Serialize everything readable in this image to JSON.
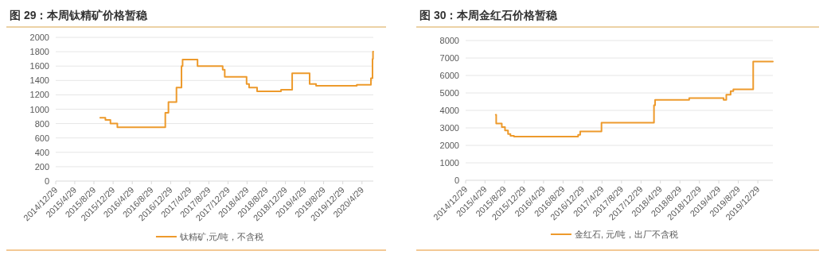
{
  "chart_data": [
    {
      "type": "step",
      "title": "图 29：本周钛精矿价格暂稳",
      "grid": "y",
      "legend": "bottom",
      "x": [
        "2015-10-08",
        "2015-11-10",
        "2015-12-12",
        "2016-01-25",
        "2016-11-25",
        "2016-12-15",
        "2017-02-04",
        "2017-03-08",
        "2017-03-15",
        "2017-06-18",
        "2017-11-25",
        "2017-12-08",
        "2018-04-26",
        "2018-05-12",
        "2018-07-02",
        "2018-12-01",
        "2019-02-10",
        "2019-06-01",
        "2019-07-12",
        "2020-03-27",
        "2020-06-25",
        "2020-07-05",
        "2020-07-08",
        "2020-07-10"
      ],
      "series": [
        {
          "name": "钛精矿,元/吨，不含税",
          "color": "#ed9a2c",
          "values": [
            880,
            850,
            800,
            750,
            950,
            1100,
            1300,
            1600,
            1690,
            1600,
            1550,
            1450,
            1350,
            1300,
            1250,
            1270,
            1500,
            1350,
            1325,
            1340,
            1430,
            1700,
            1800,
            1800
          ]
        }
      ],
      "xlim": [
        "2014-12-29",
        "2020-07-10"
      ],
      "xticks": [
        {
          "value": "2014-12-29",
          "label": "2014/12/29"
        },
        {
          "value": "2015-04-29",
          "label": "2015/4/29"
        },
        {
          "value": "2015-08-29",
          "label": "2015/8/29"
        },
        {
          "value": "2015-12-29",
          "label": "2015/12/29"
        },
        {
          "value": "2016-04-29",
          "label": "2016/4/29"
        },
        {
          "value": "2016-08-29",
          "label": "2016/8/29"
        },
        {
          "value": "2016-12-29",
          "label": "2016/12/29"
        },
        {
          "value": "2017-04-29",
          "label": "2017/4/29"
        },
        {
          "value": "2017-08-29",
          "label": "2017/8/29"
        },
        {
          "value": "2017-12-29",
          "label": "2017/12/29"
        },
        {
          "value": "2018-04-29",
          "label": "2018/4/29"
        },
        {
          "value": "2018-08-29",
          "label": "2018/8/29"
        },
        {
          "value": "2018-12-29",
          "label": "2018/12/29"
        },
        {
          "value": "2019-04-29",
          "label": "2019/4/29"
        },
        {
          "value": "2019-08-29",
          "label": "2019/8/29"
        },
        {
          "value": "2019-12-29",
          "label": "2019/12/29"
        },
        {
          "value": "2020-04-29",
          "label": "2020/4/29"
        }
      ],
      "ylim": [
        0,
        2000
      ],
      "yticks": [
        0,
        200,
        400,
        600,
        800,
        1000,
        1200,
        1400,
        1600,
        1800,
        2000
      ]
    },
    {
      "type": "step",
      "title": "图 30：本周金红石价格暂稳",
      "grid": "y",
      "legend": "bottom",
      "x": [
        "2015-07-05",
        "2015-07-08",
        "2015-08-12",
        "2015-09-01",
        "2015-09-20",
        "2015-10-05",
        "2015-10-27",
        "2016-12-01",
        "2016-12-14",
        "2017-04-26",
        "2018-03-20",
        "2018-03-27",
        "2018-10-26",
        "2019-05-29",
        "2019-06-15",
        "2019-07-12",
        "2019-07-29",
        "2019-11-30",
        "2020-04-01"
      ],
      "series": [
        {
          "name": "金红石, 元/吨，出厂不含税",
          "color": "#ed9a2c",
          "values": [
            3750,
            3250,
            3050,
            2850,
            2650,
            2550,
            2500,
            2600,
            2800,
            3300,
            4300,
            4600,
            4700,
            4600,
            4900,
            5100,
            5200,
            6800,
            6800
          ]
        }
      ],
      "xlim": [
        "2014-12-29",
        "2020-04-01"
      ],
      "xticks": [
        {
          "value": "2014-12-29",
          "label": "2014/12/29"
        },
        {
          "value": "2015-04-29",
          "label": "2015/4/29"
        },
        {
          "value": "2015-08-29",
          "label": "2015/8/29"
        },
        {
          "value": "2015-12-29",
          "label": "2015/12/29"
        },
        {
          "value": "2016-04-29",
          "label": "2016/4/29"
        },
        {
          "value": "2016-08-29",
          "label": "2016/8/29"
        },
        {
          "value": "2016-12-29",
          "label": "2016/12/29"
        },
        {
          "value": "2017-04-29",
          "label": "2017/4/29"
        },
        {
          "value": "2017-08-29",
          "label": "2017/8/29"
        },
        {
          "value": "2017-12-29",
          "label": "2017/12/29"
        },
        {
          "value": "2018-04-29",
          "label": "2018/4/29"
        },
        {
          "value": "2018-08-29",
          "label": "2018/8/29"
        },
        {
          "value": "2018-12-29",
          "label": "2018/12/29"
        },
        {
          "value": "2019-04-29",
          "label": "2019/4/29"
        },
        {
          "value": "2019-08-29",
          "label": "2019/8/29"
        },
        {
          "value": "2019-12-29",
          "label": "2019/12/29"
        }
      ],
      "ylim": [
        0,
        8000
      ],
      "yticks": [
        0,
        1000,
        2000,
        3000,
        4000,
        5000,
        6000,
        7000,
        8000
      ]
    }
  ]
}
